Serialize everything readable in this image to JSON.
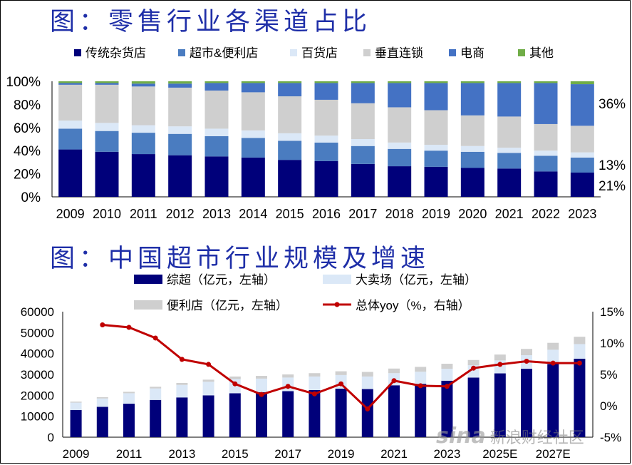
{
  "figure1": {
    "title": "图：零售行业各渠道占比",
    "chart_data": {
      "type": "bar",
      "stacked": true,
      "percent": true,
      "categories": [
        "2009",
        "2010",
        "2011",
        "2012",
        "2013",
        "2014",
        "2015",
        "2016",
        "2017",
        "2018",
        "2019",
        "2020",
        "2021",
        "2022",
        "2023"
      ],
      "series": [
        {
          "name": "传统杂货店",
          "color": "#00007a",
          "values": [
            41,
            39,
            37,
            36,
            35,
            34,
            32,
            31,
            28.5,
            26.5,
            26,
            25,
            24.5,
            22,
            21
          ]
        },
        {
          "name": "超市&便利店",
          "color": "#4a7cc0",
          "values": [
            18,
            18,
            18.5,
            18.5,
            17.5,
            17,
            16.5,
            16,
            15.5,
            15,
            14,
            14,
            13.5,
            13.5,
            13
          ]
        },
        {
          "name": "百货店",
          "color": "#dbe8f7",
          "values": [
            7,
            7,
            6.5,
            6.5,
            6.5,
            6.5,
            6.5,
            6,
            6,
            5.5,
            5,
            5,
            4.5,
            4.5,
            4.5
          ]
        },
        {
          "name": "垂直连锁",
          "color": "#cfcfcf",
          "values": [
            31,
            33,
            33.5,
            33.5,
            33,
            33,
            32,
            31,
            31,
            30.5,
            30,
            26.5,
            27,
            23,
            23
          ]
        },
        {
          "name": "电商",
          "color": "#4472c4",
          "values": [
            1.5,
            1.5,
            2.5,
            3.5,
            6.5,
            8,
            11.5,
            14.5,
            17.5,
            21,
            23.5,
            28,
            29,
            35.5,
            36
          ]
        },
        {
          "name": "其他",
          "color": "#70ad47",
          "values": [
            1.5,
            1.5,
            2,
            2,
            1.5,
            1.5,
            1.5,
            1.5,
            1.5,
            1.5,
            1.5,
            1.5,
            1.5,
            1.5,
            2.5
          ]
        }
      ],
      "yticks": [
        "0%",
        "20%",
        "40%",
        "60%",
        "80%",
        "100%"
      ],
      "ylim": [
        0,
        100
      ],
      "grid": false,
      "legend": "top",
      "annotations": [
        "36%",
        "13%",
        "21%"
      ]
    }
  },
  "figure2": {
    "title": "图：中国超市行业规模及增速",
    "chart_data": {
      "type": "bar",
      "stacked": true,
      "categories": [
        "2009",
        "2010",
        "2011",
        "2012",
        "2013",
        "2014",
        "2015",
        "2016",
        "2017",
        "2018",
        "2019",
        "2020",
        "2021",
        "2022",
        "2023",
        "2024E",
        "2025E",
        "2026E",
        "2027E",
        "2028E"
      ],
      "xtick_labels": [
        "2009",
        "2011",
        "2013",
        "2015",
        "2017",
        "2019",
        "2021",
        "2023",
        "2025E",
        "2027E"
      ],
      "series": [
        {
          "name": "综超（亿元，左轴）",
          "color": "#00007a",
          "axis": "left",
          "values": [
            13000,
            14500,
            16000,
            17800,
            19000,
            20000,
            21000,
            21500,
            22000,
            22500,
            23200,
            23000,
            24800,
            25500,
            27000,
            28500,
            30500,
            32700,
            35000,
            37500
          ]
        },
        {
          "name": "大卖场（亿元，左轴）",
          "color": "#dbe8f7",
          "axis": "left",
          "values": [
            3500,
            4000,
            5000,
            5500,
            6000,
            6500,
            6800,
            6500,
            6500,
            6500,
            6500,
            6000,
            5800,
            5800,
            5700,
            5900,
            6200,
            6500,
            6800,
            7000
          ]
        },
        {
          "name": "便利店（亿元，左轴）",
          "color": "#cfcfcf",
          "axis": "left",
          "values": [
            500,
            600,
            700,
            800,
            900,
            1000,
            1200,
            1300,
            1500,
            1600,
            1800,
            2200,
            2200,
            2300,
            2400,
            2500,
            2800,
            3000,
            3300,
            3500
          ]
        },
        {
          "name": "总体yoy（%，右轴）",
          "color": "#c00000",
          "axis": "right",
          "type": "line",
          "values": [
            null,
            12.9,
            12.5,
            10.8,
            7.4,
            6.6,
            3.5,
            1.8,
            3.1,
            1.9,
            3.5,
            -0.5,
            4.0,
            3.2,
            3.1,
            6.0,
            6.6,
            7.1,
            6.8,
            6.8
          ]
        }
      ],
      "yticks_left": [
        "0",
        "10000",
        "20000",
        "30000",
        "40000",
        "50000",
        "60000"
      ],
      "ylim_left": [
        0,
        60000
      ],
      "yticks_right": [
        "-5%",
        "0%",
        "5%",
        "10%",
        "15%"
      ],
      "ylim_right": [
        -5,
        15
      ],
      "grid": false,
      "legend": "top"
    }
  },
  "watermark": {
    "logo": "sina",
    "text": "新浪财经社区"
  }
}
